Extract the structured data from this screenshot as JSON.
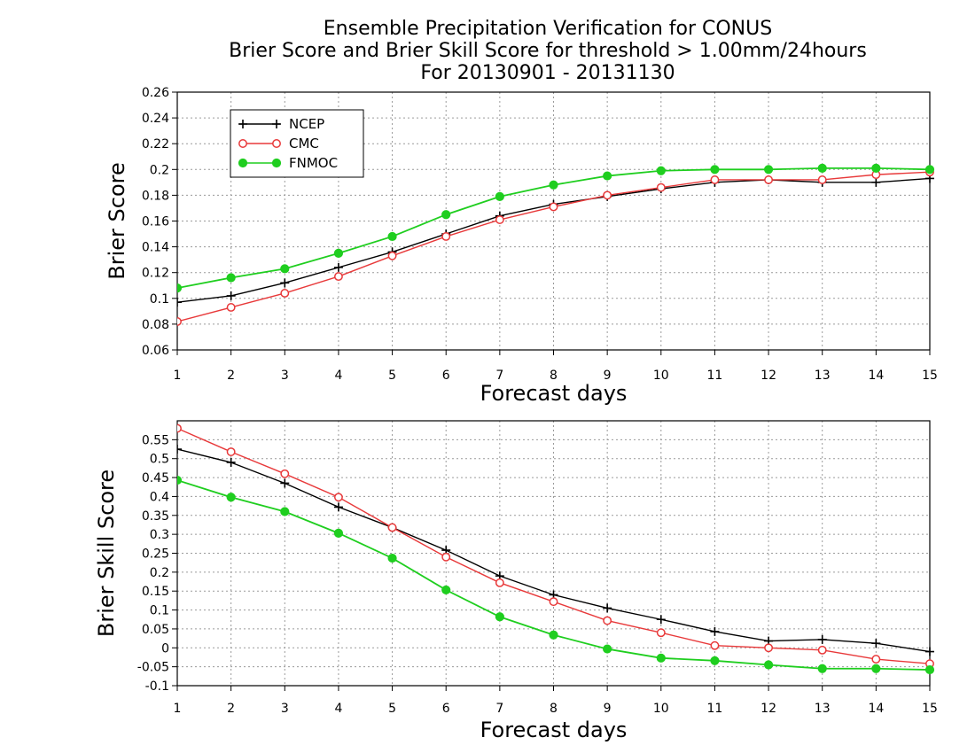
{
  "title_lines": [
    "Ensemble Precipitation Verification for CONUS",
    "Brier Score and Brier Skill Score for threshold > 1.00mm/24hours",
    "For 20130901 - 20131130"
  ],
  "colors": {
    "NCEP": "#000000",
    "CMC": "#e8393a",
    "FNMOC": "#1fce1f"
  },
  "chart_data": [
    {
      "type": "line",
      "title": "",
      "xlabel": "Forecast days",
      "ylabel": "Brier Score",
      "x": [
        1,
        2,
        3,
        4,
        5,
        6,
        7,
        8,
        9,
        10,
        11,
        12,
        13,
        14,
        15
      ],
      "xlim": [
        1,
        15
      ],
      "ylim": [
        0.06,
        0.26
      ],
      "y_ticks": [
        0.06,
        0.08,
        0.1,
        0.12,
        0.14,
        0.16,
        0.18,
        0.2,
        0.22,
        0.24,
        0.26
      ],
      "y_tick_labels": [
        "0.06",
        "0.08",
        "0.1",
        "0.12",
        "0.14",
        "0.16",
        "0.18",
        "0.2",
        "0.22",
        "0.24",
        "0.26"
      ],
      "grid": true,
      "legend": "top-left",
      "series": [
        {
          "name": "NCEP",
          "marker": "plus",
          "values": [
            0.097,
            0.102,
            0.112,
            0.124,
            0.136,
            0.15,
            0.164,
            0.173,
            0.179,
            0.185,
            0.19,
            0.192,
            0.19,
            0.19,
            0.193
          ]
        },
        {
          "name": "CMC",
          "marker": "open-circle",
          "values": [
            0.082,
            0.093,
            0.104,
            0.117,
            0.133,
            0.148,
            0.161,
            0.171,
            0.18,
            0.186,
            0.192,
            0.192,
            0.192,
            0.196,
            0.198
          ]
        },
        {
          "name": "FNMOC",
          "marker": "filled-circle",
          "values": [
            0.108,
            0.116,
            0.123,
            0.135,
            0.148,
            0.165,
            0.179,
            0.188,
            0.195,
            0.199,
            0.2,
            0.2,
            0.201,
            0.201,
            0.2
          ]
        }
      ]
    },
    {
      "type": "line",
      "title": "",
      "xlabel": "Forecast days",
      "ylabel": "Brier Skill Score",
      "x": [
        1,
        2,
        3,
        4,
        5,
        6,
        7,
        8,
        9,
        10,
        11,
        12,
        13,
        14,
        15
      ],
      "xlim": [
        1,
        15
      ],
      "ylim": [
        -0.1,
        0.6
      ],
      "y_ticks": [
        -0.1,
        -0.05,
        0,
        0.05,
        0.1,
        0.15,
        0.2,
        0.25,
        0.3,
        0.35,
        0.4,
        0.45,
        0.5,
        0.55
      ],
      "y_tick_labels": [
        "-0.1",
        "-0.05",
        "0",
        "0.05",
        "0.1",
        "0.15",
        "0.2",
        "0.25",
        "0.3",
        "0.35",
        "0.4",
        "0.45",
        "0.5",
        "0.55"
      ],
      "grid": true,
      "legend": "none",
      "series": [
        {
          "name": "NCEP",
          "marker": "plus",
          "values": [
            0.525,
            0.49,
            0.435,
            0.372,
            0.318,
            0.258,
            0.19,
            0.14,
            0.105,
            0.075,
            0.043,
            0.018,
            0.022,
            0.012,
            -0.01
          ]
        },
        {
          "name": "CMC",
          "marker": "open-circle",
          "values": [
            0.58,
            0.518,
            0.46,
            0.398,
            0.318,
            0.24,
            0.172,
            0.122,
            0.072,
            0.04,
            0.006,
            0.0,
            -0.006,
            -0.03,
            -0.042
          ]
        },
        {
          "name": "FNMOC",
          "marker": "filled-circle",
          "values": [
            0.443,
            0.398,
            0.36,
            0.303,
            0.237,
            0.153,
            0.082,
            0.034,
            -0.003,
            -0.027,
            -0.034,
            -0.045,
            -0.055,
            -0.055,
            -0.058
          ]
        }
      ]
    }
  ]
}
